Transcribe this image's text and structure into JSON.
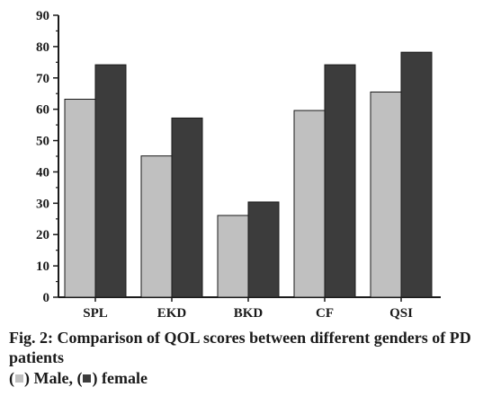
{
  "chart_data": {
    "type": "bar",
    "categories": [
      "SPL",
      "EKD",
      "BKD",
      "CF",
      "QSI"
    ],
    "series": [
      {
        "name": "Male",
        "values": [
          63.2,
          45.1,
          26.1,
          59.6,
          65.5
        ],
        "color": "#c0c0c0"
      },
      {
        "name": "female",
        "values": [
          74.2,
          57.2,
          30.4,
          74.2,
          78.2
        ],
        "color": "#3c3c3c"
      }
    ],
    "ylim": [
      0,
      90
    ],
    "yticks": [
      0,
      10,
      20,
      30,
      40,
      50,
      60,
      70,
      80,
      90
    ],
    "title": "",
    "xlabel": "",
    "ylabel": ""
  },
  "caption": {
    "line1": "Fig. 2: Comparison of QOL scores between different genders of PD patients",
    "legend_open": "(",
    "male_label": ") Male, (",
    "female_label": ") female"
  }
}
